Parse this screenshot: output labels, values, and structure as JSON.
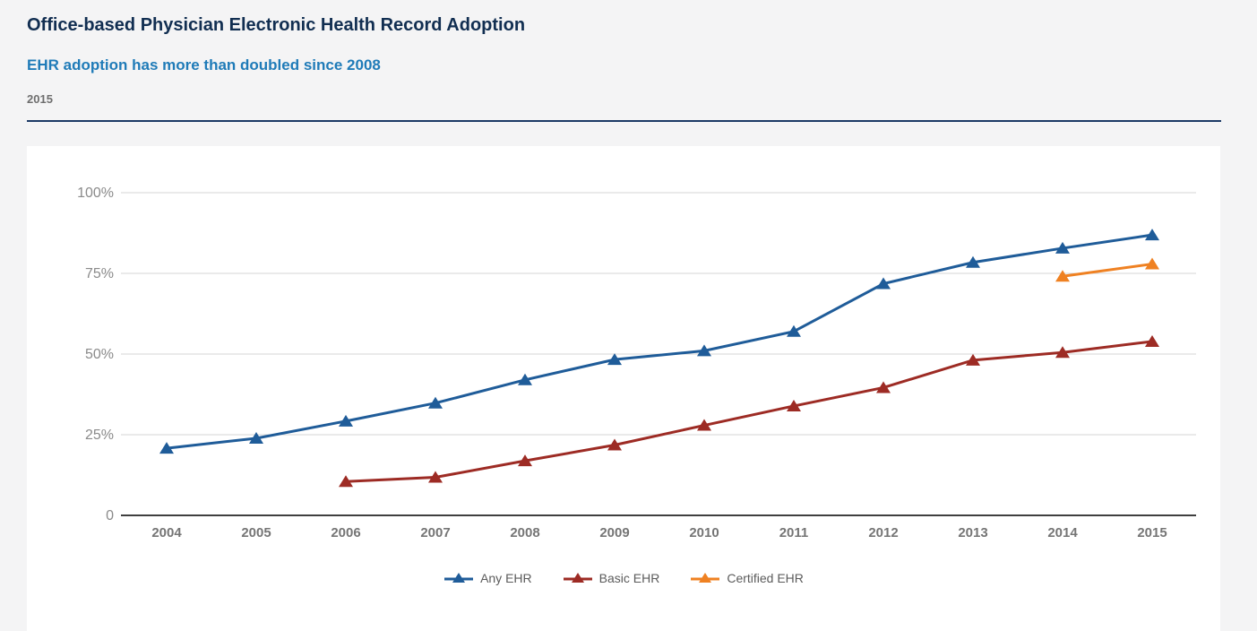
{
  "header": {
    "title": "Office-based Physician Electronic Health Record Adoption",
    "subtitle": "EHR adoption has more than doubled since 2008",
    "year_label": "2015"
  },
  "colors": {
    "title_text": "#112e51",
    "subtitle_text": "#1f7bb8",
    "year_label_text": "#6e6e6e",
    "header_divider": "#1b3a66",
    "page_background": "#f4f4f5",
    "card_background": "#ffffff",
    "gridline": "#d6d6d6",
    "axis_line": "#3f3f3f",
    "y_tick_label": "#8a8a8a",
    "x_tick_label": "#757575",
    "legend_label": "#5b5b5b",
    "any_ehr": "#1f5c99",
    "basic_ehr": "#9d2b24",
    "certified_ehr": "#ef8122"
  },
  "chart_data": {
    "type": "line",
    "title": "Office-based Physician Electronic Health Record Adoption",
    "xlabel": "",
    "ylabel": "",
    "x": [
      2004,
      2005,
      2006,
      2007,
      2008,
      2009,
      2010,
      2011,
      2012,
      2013,
      2014,
      2015
    ],
    "series": [
      {
        "name": "Any EHR",
        "color": "#1f5c99",
        "marker": "triangle-up",
        "values": [
          20.8,
          23.9,
          29.2,
          34.8,
          42.0,
          48.3,
          51.0,
          57.0,
          71.8,
          78.4,
          82.8,
          86.9
        ]
      },
      {
        "name": "Basic EHR",
        "color": "#9d2b24",
        "marker": "triangle-up",
        "values": [
          null,
          null,
          10.5,
          11.8,
          16.9,
          21.8,
          27.9,
          33.9,
          39.6,
          48.1,
          50.5,
          53.9
        ]
      },
      {
        "name": "Certified EHR",
        "color": "#ef8122",
        "marker": "triangle-up",
        "values": [
          null,
          null,
          null,
          null,
          null,
          null,
          null,
          null,
          null,
          null,
          74.1,
          77.9
        ]
      }
    ],
    "y_ticks": [
      {
        "value": 100,
        "label": "100%"
      },
      {
        "value": 75,
        "label": "75%"
      },
      {
        "value": 50,
        "label": "50%"
      },
      {
        "value": 25,
        "label": "25%"
      },
      {
        "value": 0,
        "label": "0"
      }
    ],
    "ylim": [
      0,
      100
    ],
    "grid": true,
    "legend_position": "bottom"
  }
}
